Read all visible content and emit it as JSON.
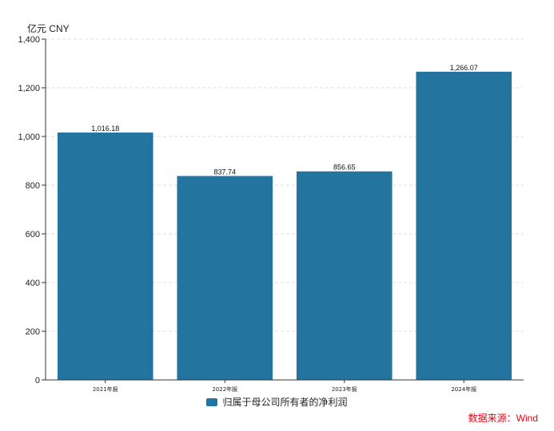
{
  "unit_label": "亿元  CNY",
  "source_label": "数据来源：Wind",
  "colors": {
    "bar": "#2474a0",
    "axis": "#333333",
    "grid": "#dddddd",
    "source": "#e60012"
  },
  "chart_data": {
    "type": "bar",
    "categories": [
      "2021年报",
      "2022年报",
      "2023年报",
      "2024年报"
    ],
    "series": [
      {
        "name": "归属于母公司所有者的净利润",
        "values": [
          1016.18,
          837.74,
          856.65,
          1266.07
        ]
      }
    ],
    "value_labels": [
      "1,016.18",
      "837.74",
      "856.65",
      "1,266.07"
    ],
    "ylim": [
      0,
      1400
    ],
    "yticks": [
      0,
      200,
      400,
      600,
      800,
      1000,
      1200,
      1400
    ],
    "ytick_labels": [
      "0",
      "200",
      "400",
      "600",
      "800",
      "1,000",
      "1,200",
      "1,400"
    ],
    "grid": true,
    "legend_position": "bottom-center"
  }
}
